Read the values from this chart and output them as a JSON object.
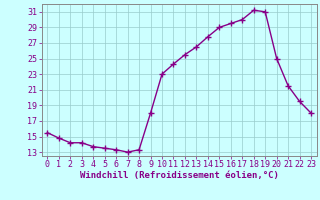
{
  "x": [
    0,
    1,
    2,
    3,
    4,
    5,
    6,
    7,
    8,
    9,
    10,
    11,
    12,
    13,
    14,
    15,
    16,
    17,
    18,
    19,
    20,
    21,
    22,
    23
  ],
  "y": [
    15.5,
    14.8,
    14.2,
    14.2,
    13.7,
    13.5,
    13.3,
    13.0,
    13.3,
    18.0,
    23.0,
    24.3,
    25.5,
    26.5,
    27.8,
    29.0,
    29.5,
    30.0,
    31.2,
    31.0,
    25.0,
    21.5,
    19.5,
    18.0
  ],
  "line_color": "#880088",
  "marker": "+",
  "markersize": 4,
  "markeredgewidth": 1.0,
  "linewidth": 1.0,
  "background_color": "#ccffff",
  "grid_color": "#99cccc",
  "xlabel": "Windchill (Refroidissement éolien,°C)",
  "xlabel_fontsize": 6.5,
  "tick_fontsize": 6.0,
  "ylim": [
    12.5,
    32.0
  ],
  "yticks": [
    13,
    15,
    17,
    19,
    21,
    23,
    25,
    27,
    29,
    31
  ],
  "xlim": [
    -0.5,
    23.5
  ],
  "xticks": [
    0,
    1,
    2,
    3,
    4,
    5,
    6,
    7,
    8,
    9,
    10,
    11,
    12,
    13,
    14,
    15,
    16,
    17,
    18,
    19,
    20,
    21,
    22,
    23
  ]
}
